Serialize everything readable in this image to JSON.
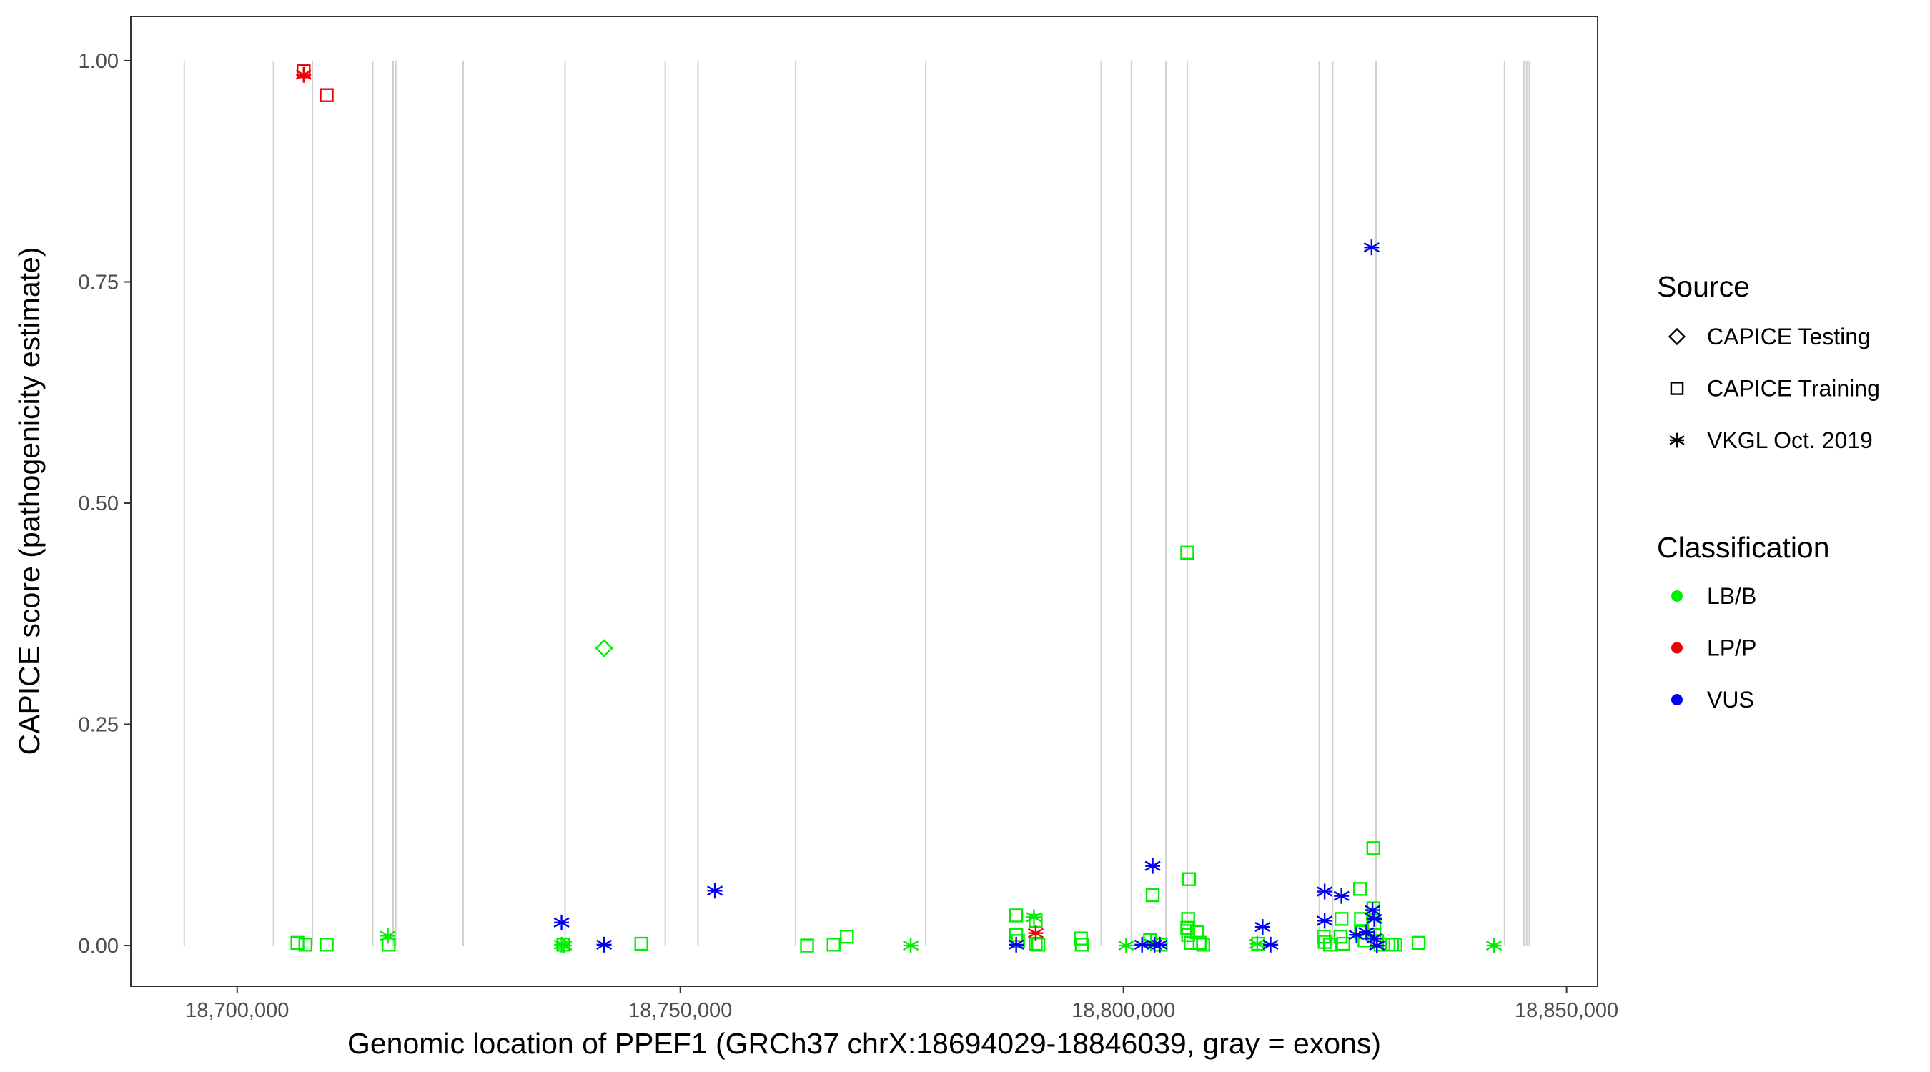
{
  "chart_data": {
    "type": "scatter",
    "title": "",
    "xlabel": "Genomic location of PPEF1 (GRCh37 chrX:18694029-18846039, gray = exons)",
    "ylabel": "CAPICE score (pathogenicity estimate)",
    "xlim": [
      18688000,
      18853500
    ],
    "ylim": [
      -0.046,
      1.05
    ],
    "x_ticks": [
      18700000,
      18750000,
      18800000,
      18850000
    ],
    "x_tick_labels": [
      "18,700,000",
      "18,750,000",
      "18,800,000",
      "18,850,000"
    ],
    "y_ticks": [
      0,
      0.25,
      0.5,
      0.75,
      1
    ],
    "y_tick_labels": [
      "0.00",
      "0.25",
      "0.50",
      "0.75",
      "1.00"
    ],
    "grid": false,
    "exons": [
      18694029,
      18704100,
      18708500,
      18715300,
      18717600,
      18717900,
      18725500,
      18737000,
      18748300,
      18752000,
      18763000,
      18777700,
      18797500,
      18800900,
      18804800,
      18807200,
      18822100,
      18823600,
      18828500,
      18843000,
      18845200,
      18845500,
      18845800
    ],
    "legend": {
      "placement": "right",
      "shape_title": "Source",
      "shape_entries": [
        {
          "label": "CAPICE Testing",
          "shape": "diamond"
        },
        {
          "label": "CAPICE Training",
          "shape": "square"
        },
        {
          "label": "VKGL Oct. 2019",
          "shape": "asterisk"
        }
      ],
      "color_title": "Classification",
      "color_entries": [
        {
          "label": "LB/B",
          "color": "#00ee00"
        },
        {
          "label": "LP/P",
          "color": "#ee0000"
        },
        {
          "label": "VUS",
          "color": "#0000ee"
        }
      ]
    },
    "colors": {
      "LB/B": "#00ee00",
      "LP/P": "#ee0000",
      "VUS": "#0000ee"
    },
    "series": [
      {
        "source": "CAPICE Training",
        "class": "LB/B",
        "points": [
          [
            18706800,
            0.003
          ],
          [
            18707700,
            0.001
          ],
          [
            18710100,
            0.001
          ],
          [
            18717100,
            0.001
          ],
          [
            18736800,
            0.001
          ],
          [
            18745600,
            0.002
          ],
          [
            18764300,
            0.0
          ],
          [
            18767300,
            0.001
          ],
          [
            18768800,
            0.01
          ],
          [
            18787900,
            0.034
          ],
          [
            18787900,
            0.012
          ],
          [
            18788100,
            0.005
          ],
          [
            18790100,
            0.028
          ],
          [
            18790100,
            0.002
          ],
          [
            18790400,
            0.001
          ],
          [
            18795200,
            0.008
          ],
          [
            18795300,
            0.001
          ],
          [
            18803300,
            0.057
          ],
          [
            18803000,
            0.006
          ],
          [
            18804200,
            0.001
          ],
          [
            18807200,
            0.444
          ],
          [
            18807400,
            0.075
          ],
          [
            18807300,
            0.03
          ],
          [
            18807200,
            0.02
          ],
          [
            18807300,
            0.012
          ],
          [
            18807600,
            0.003
          ],
          [
            18808300,
            0.015
          ],
          [
            18808600,
            0.003
          ],
          [
            18809000,
            0.001
          ],
          [
            18815200,
            0.002
          ],
          [
            18822600,
            0.01
          ],
          [
            18822700,
            0.004
          ],
          [
            18823300,
            0.001
          ],
          [
            18824600,
            0.03
          ],
          [
            18824500,
            0.01
          ],
          [
            18824800,
            0.002
          ],
          [
            18826700,
            0.064
          ],
          [
            18826800,
            0.03
          ],
          [
            18826800,
            0.015
          ],
          [
            18827200,
            0.006
          ],
          [
            18828200,
            0.11
          ],
          [
            18828200,
            0.042
          ],
          [
            18828300,
            0.025
          ],
          [
            18828300,
            0.012
          ],
          [
            18828600,
            0.005
          ],
          [
            18829000,
            0.001
          ],
          [
            18829900,
            0.001
          ],
          [
            18830300,
            0.001
          ],
          [
            18830700,
            0.001
          ],
          [
            18833300,
            0.003
          ]
        ]
      },
      {
        "source": "CAPICE Training",
        "class": "LP/P",
        "points": [
          [
            18707500,
            0.988
          ],
          [
            18710100,
            0.961
          ]
        ]
      },
      {
        "source": "CAPICE Testing",
        "class": "LB/B",
        "points": [
          [
            18741400,
            0.336
          ]
        ]
      },
      {
        "source": "VKGL Oct. 2019",
        "class": "LB/B",
        "points": [
          [
            18717000,
            0.011
          ],
          [
            18736600,
            0.001
          ],
          [
            18736900,
            0.0
          ],
          [
            18776000,
            0.0
          ],
          [
            18789900,
            0.032
          ],
          [
            18800300,
            0.0
          ],
          [
            18803100,
            0.003
          ],
          [
            18815100,
            0.002
          ],
          [
            18841800,
            0.0
          ]
        ]
      },
      {
        "source": "VKGL Oct. 2019",
        "class": "LP/P",
        "points": [
          [
            18707500,
            0.984
          ],
          [
            18790100,
            0.014
          ]
        ]
      },
      {
        "source": "VKGL Oct. 2019",
        "class": "VUS",
        "points": [
          [
            18736600,
            0.026
          ],
          [
            18741400,
            0.001
          ],
          [
            18753900,
            0.062
          ],
          [
            18787900,
            0.001
          ],
          [
            18802100,
            0.001
          ],
          [
            18803300,
            0.09
          ],
          [
            18803500,
            0.001
          ],
          [
            18804100,
            0.001
          ],
          [
            18815700,
            0.021
          ],
          [
            18816600,
            0.001
          ],
          [
            18822700,
            0.061
          ],
          [
            18822700,
            0.028
          ],
          [
            18824600,
            0.056
          ],
          [
            18826300,
            0.012
          ],
          [
            18827400,
            0.015
          ],
          [
            18828000,
            0.789
          ],
          [
            18828100,
            0.04
          ],
          [
            18828300,
            0.03
          ],
          [
            18828300,
            0.008
          ],
          [
            18828600,
            0.0
          ]
        ]
      }
    ]
  }
}
